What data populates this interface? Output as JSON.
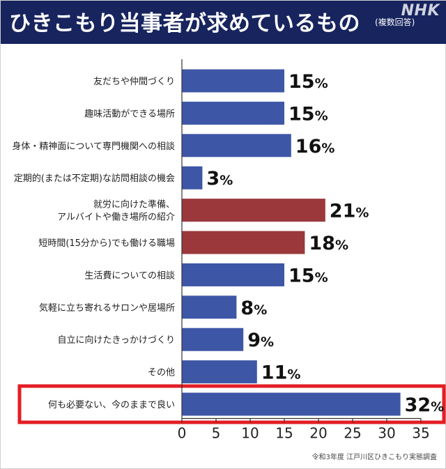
{
  "header": {
    "title": "ひきこもり当事者が求めているもの",
    "subtitle": "(複数回答)",
    "logo": "NHK"
  },
  "source": "令和3年度 江戸川区ひきこもり実態調査",
  "colors": {
    "header_bg": "#17245e",
    "bar_blue": "#3e56a6",
    "bar_red": "#9a383c",
    "highlight_border": "#e31e24"
  },
  "chart_data": {
    "type": "bar",
    "orientation": "horizontal",
    "title": "ひきこもり当事者が求めているもの",
    "subtitle": "(複数回答)",
    "value_suffix": "%",
    "xlim": [
      0,
      35
    ],
    "xticks": [
      0,
      5,
      10,
      15,
      20,
      25,
      30,
      35
    ],
    "categories": [
      "友だちや仲間づくり",
      "趣味活動ができる場所",
      "身体・精神面について専門機関への相談",
      "定期的(または不定期)な訪問相談の機会",
      "就労に向けた準備、\nアルバイトや働き場所の紹介",
      "短時間(15分から)でも働ける職場",
      "生活費についての相談",
      "気軽に立ち寄れるサロンや居場所",
      "自立に向けたきっかけづくり",
      "その他",
      "何も必要ない、今のままで良い"
    ],
    "values": [
      15,
      15,
      16,
      3,
      21,
      18,
      15,
      8,
      9,
      11,
      32
    ],
    "bar_colors": [
      "blue",
      "blue",
      "blue",
      "blue",
      "red",
      "red",
      "blue",
      "blue",
      "blue",
      "blue",
      "blue"
    ],
    "highlighted_category": "何も必要ない、今のままで良い",
    "grid": false,
    "legend": "none"
  }
}
